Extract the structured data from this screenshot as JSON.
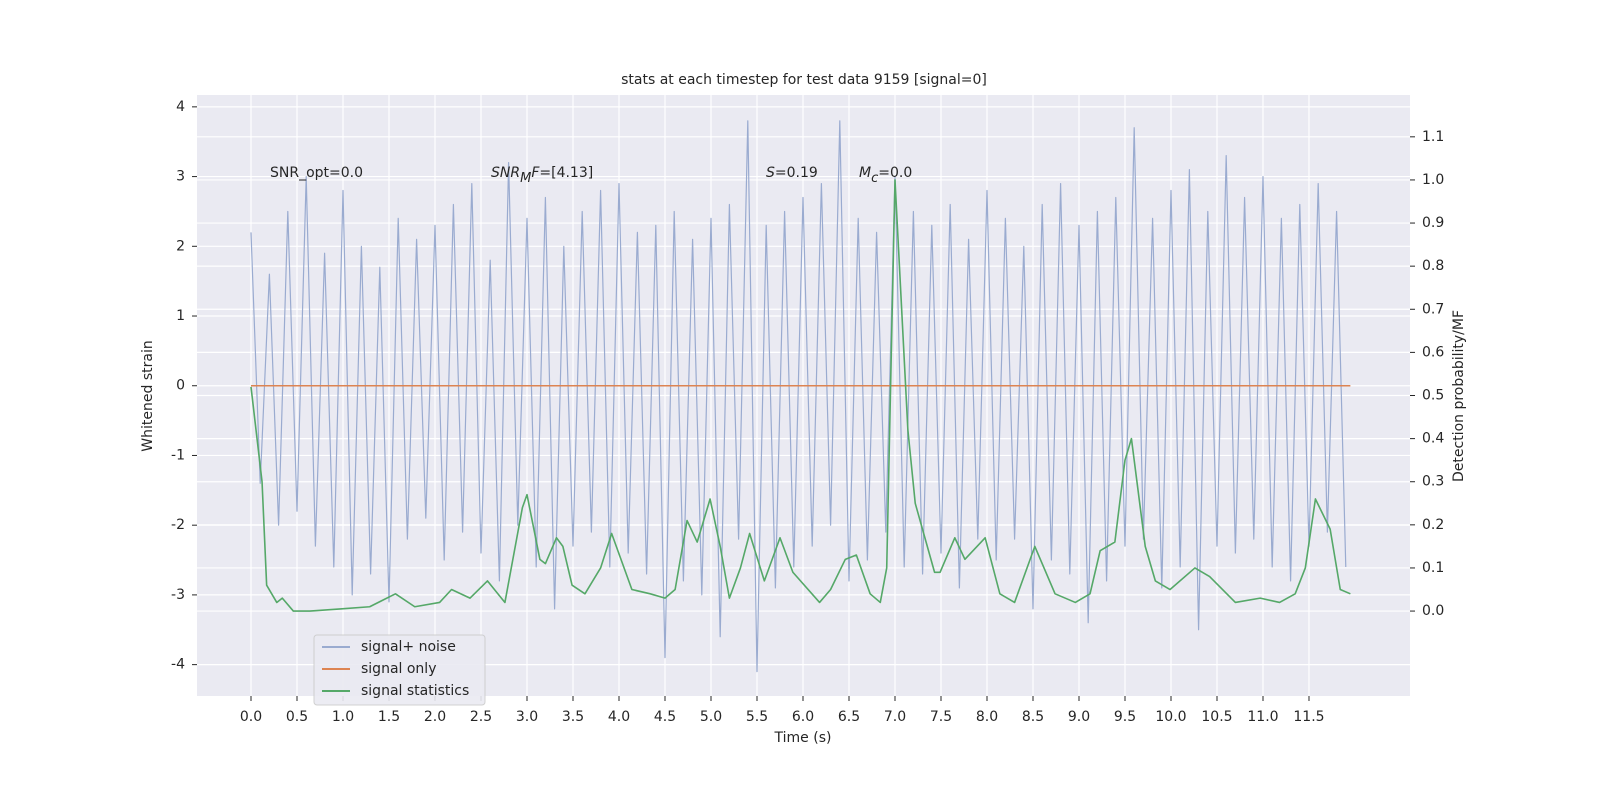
{
  "chart_data": {
    "type": "line",
    "title": "stats at each timestep for test data 9159 [signal=0]",
    "xlabel": "Time (s)",
    "ylabel": "Whitened strain",
    "y2label": "Detection probability/MF",
    "annotations": [
      [
        "SNR_opt=0.0"
      ],
      [
        "SNR",
        "M",
        "F",
        "=[4.13]"
      ],
      [
        "S",
        "=0.19"
      ],
      [
        "M",
        "c",
        "=0.0"
      ]
    ],
    "xlim": [
      -0.587,
      12.598
    ],
    "xticks": [
      {
        "value": 0,
        "label": "0.0"
      },
      0.5,
      {
        "value": 1,
        "label": "1.0"
      },
      1.5,
      {
        "value": 2,
        "label": "2.0"
      },
      2.5,
      {
        "value": 3,
        "label": "3.0"
      },
      3.5,
      {
        "value": 4,
        "label": "4.0"
      },
      4.5,
      {
        "value": 5,
        "label": "5.0"
      },
      5.5,
      {
        "value": 6,
        "label": "6.0"
      },
      6.5,
      {
        "value": 7,
        "label": "7.0"
      },
      7.5,
      {
        "value": 8,
        "label": "8.0"
      },
      8.5,
      {
        "value": 9,
        "label": "9.0"
      },
      9.5,
      {
        "value": 10,
        "label": "10.0"
      },
      10.5,
      {
        "value": 11,
        "label": "11.0"
      },
      11.5
    ],
    "ylim": [
      -4.45,
      4.17
    ],
    "yticks": [
      -4,
      -3,
      -2,
      -1,
      0,
      1,
      2,
      3,
      4
    ],
    "y2lim": [
      -0.197,
      1.197
    ],
    "y2ticks": [
      {
        "value": 0,
        "label": "0.0"
      },
      0.1,
      0.2,
      0.3,
      0.4,
      0.5,
      0.6,
      0.7,
      0.8,
      0.9,
      {
        "value": 1,
        "label": "1.0"
      },
      1.1
    ],
    "grid": true,
    "legend": "lower left",
    "series": [
      {
        "name": "signal+ noise",
        "color": "#9aabd0",
        "x": [
          0.0,
          0.1,
          0.2,
          0.3,
          0.4,
          0.5,
          0.6,
          0.7,
          0.8,
          0.9,
          1.0,
          1.1,
          1.2,
          1.3,
          1.4,
          1.5,
          1.6,
          1.7,
          1.8,
          1.9,
          2.0,
          2.1,
          2.2,
          2.3,
          2.4,
          2.5,
          2.6,
          2.7,
          2.8,
          2.9,
          3.0,
          3.1,
          3.2,
          3.3,
          3.4,
          3.5,
          3.6,
          3.7,
          3.8,
          3.9,
          4.0,
          4.1,
          4.2,
          4.3,
          4.4,
          4.5,
          4.6,
          4.7,
          4.8,
          4.9,
          5.0,
          5.1,
          5.2,
          5.3,
          5.4,
          5.5,
          5.6,
          5.7,
          5.8,
          5.9,
          6.0,
          6.1,
          6.2,
          6.3,
          6.4,
          6.5,
          6.6,
          6.7,
          6.8,
          6.9,
          7.0,
          7.1,
          7.2,
          7.3,
          7.4,
          7.5,
          7.6,
          7.7,
          7.8,
          7.9,
          8.0,
          8.1,
          8.2,
          8.3,
          8.4,
          8.5,
          8.6,
          8.7,
          8.8,
          8.9,
          9.0,
          9.1,
          9.2,
          9.3,
          9.4,
          9.5,
          9.6,
          9.7,
          9.8,
          9.9,
          10.0,
          10.1,
          10.2,
          10.3,
          10.4,
          10.5,
          10.6,
          10.7,
          10.8,
          10.9,
          11.0,
          11.1,
          11.2,
          11.3,
          11.4,
          11.5,
          11.6,
          11.7,
          11.8,
          11.9
        ],
        "values": [
          2.2,
          -1.4,
          1.6,
          -2.0,
          2.5,
          -1.8,
          3.0,
          -2.3,
          1.9,
          -2.6,
          2.8,
          -3.0,
          2.0,
          -2.7,
          1.7,
          -3.1,
          2.4,
          -2.2,
          2.1,
          -1.9,
          2.3,
          -2.5,
          2.6,
          -2.1,
          2.9,
          -2.4,
          1.8,
          -2.8,
          3.2,
          -2.0,
          2.4,
          -2.6,
          2.7,
          -3.2,
          2.0,
          -2.3,
          2.5,
          -2.1,
          2.8,
          -2.6,
          2.9,
          -2.4,
          2.2,
          -2.7,
          2.3,
          -3.9,
          2.5,
          -2.8,
          2.1,
          -3.0,
          2.4,
          -3.6,
          2.6,
          -2.2,
          3.8,
          -4.1,
          2.3,
          -2.9,
          2.5,
          -2.6,
          2.7,
          -2.3,
          2.9,
          -2.0,
          3.8,
          -2.8,
          2.4,
          -2.5,
          2.2,
          -2.1,
          3.0,
          -2.6,
          2.5,
          -2.7,
          2.3,
          -2.4,
          2.6,
          -2.9,
          2.1,
          -2.2,
          2.8,
          -2.5,
          2.4,
          -2.2,
          2.0,
          -3.2,
          2.6,
          -2.5,
          2.9,
          -2.7,
          2.3,
          -3.4,
          2.5,
          -2.8,
          2.7,
          -2.3,
          3.7,
          -2.2,
          2.4,
          -2.9,
          2.8,
          -2.6,
          3.1,
          -3.5,
          2.5,
          -2.3,
          3.3,
          -2.4,
          2.7,
          -2.2,
          3.0,
          -2.6,
          2.4,
          -2.8,
          2.6,
          -2.3,
          2.9,
          -2.1,
          2.5,
          -2.6
        ]
      },
      {
        "name": "signal only",
        "color": "#dd8452",
        "x": [
          0.0,
          11.95
        ],
        "values": [
          0,
          0
        ]
      },
      {
        "name": "signal statistics",
        "color": "#55a868",
        "axis": "y2",
        "x": [
          0.0,
          0.12,
          0.17,
          0.28,
          0.34,
          0.46,
          0.64,
          0.97,
          1.29,
          1.57,
          1.78,
          2.05,
          2.18,
          2.38,
          2.57,
          2.76,
          2.95,
          3.0,
          3.14,
          3.2,
          3.32,
          3.39,
          3.49,
          3.63,
          3.8,
          3.92,
          4.14,
          4.34,
          4.5,
          4.61,
          4.74,
          4.85,
          4.99,
          5.1,
          5.2,
          5.32,
          5.42,
          5.58,
          5.75,
          5.89,
          6.18,
          6.3,
          6.46,
          6.58,
          6.73,
          6.84,
          6.91,
          7.0,
          7.14,
          7.22,
          7.43,
          7.49,
          7.65,
          7.76,
          7.98,
          8.14,
          8.3,
          8.52,
          8.74,
          8.96,
          9.12,
          9.23,
          9.39,
          9.5,
          9.57,
          9.72,
          9.83,
          9.99,
          10.26,
          10.42,
          10.7,
          10.97,
          11.18,
          11.35,
          11.46,
          11.57,
          11.73,
          11.84,
          11.95
        ],
        "values": [
          0.52,
          0.3,
          0.06,
          0.02,
          0.03,
          0.0,
          0.0,
          0.005,
          0.01,
          0.04,
          0.01,
          0.02,
          0.05,
          0.03,
          0.07,
          0.02,
          0.24,
          0.27,
          0.12,
          0.11,
          0.17,
          0.15,
          0.06,
          0.04,
          0.1,
          0.18,
          0.05,
          0.04,
          0.03,
          0.05,
          0.21,
          0.16,
          0.26,
          0.15,
          0.03,
          0.1,
          0.18,
          0.07,
          0.17,
          0.09,
          0.02,
          0.05,
          0.12,
          0.13,
          0.04,
          0.02,
          0.1,
          1.0,
          0.42,
          0.25,
          0.09,
          0.09,
          0.17,
          0.12,
          0.17,
          0.04,
          0.02,
          0.15,
          0.04,
          0.02,
          0.04,
          0.14,
          0.16,
          0.35,
          0.4,
          0.15,
          0.07,
          0.05,
          0.1,
          0.08,
          0.02,
          0.03,
          0.02,
          0.04,
          0.1,
          0.26,
          0.19,
          0.05,
          0.04
        ]
      }
    ]
  }
}
